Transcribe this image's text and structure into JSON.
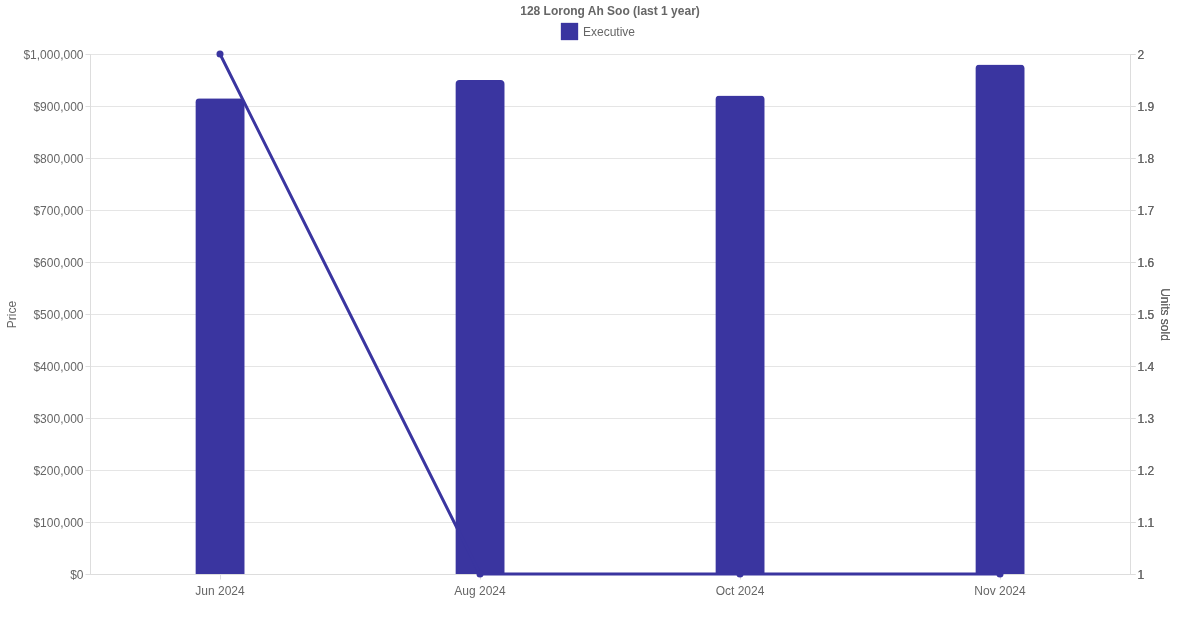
{
  "chart_data": {
    "type": "bar",
    "title": "128 Lorong Ah Soo (last 1 year)",
    "categories": [
      "Jun 2024",
      "Aug 2024",
      "Oct 2024",
      "Nov 2024"
    ],
    "series": [
      {
        "name": "Executive",
        "color": "#3a35a0",
        "values": [
          915000,
          950000,
          920000,
          980000
        ]
      },
      {
        "type": "line",
        "axis": "y2",
        "color": "#3a35a0",
        "marker": "circle",
        "values": [
          2,
          1,
          1,
          1
        ]
      }
    ],
    "ylabel": "Price",
    "y2label": "Units sold",
    "ylim": [
      0,
      1000000
    ],
    "yticks": [
      {
        "value": 0,
        "label": "$0"
      },
      {
        "value": 100000,
        "label": "$100,000"
      },
      {
        "value": 200000,
        "label": "$200,000"
      },
      {
        "value": 300000,
        "label": "$300,000"
      },
      {
        "value": 400000,
        "label": "$400,000"
      },
      {
        "value": 500000,
        "label": "$500,000"
      },
      {
        "value": 600000,
        "label": "$600,000"
      },
      {
        "value": 700000,
        "label": "$700,000"
      },
      {
        "value": 800000,
        "label": "$800,000"
      },
      {
        "value": 900000,
        "label": "$900,000"
      },
      {
        "value": 1000000,
        "label": "$1,000,000"
      }
    ],
    "y2lim": [
      1,
      2
    ],
    "y2ticks": [
      1,
      1.1,
      1.2,
      1.3,
      1.4,
      1.5,
      1.6,
      1.7,
      1.8,
      1.9,
      2
    ],
    "grid": "y",
    "legend": "top"
  }
}
